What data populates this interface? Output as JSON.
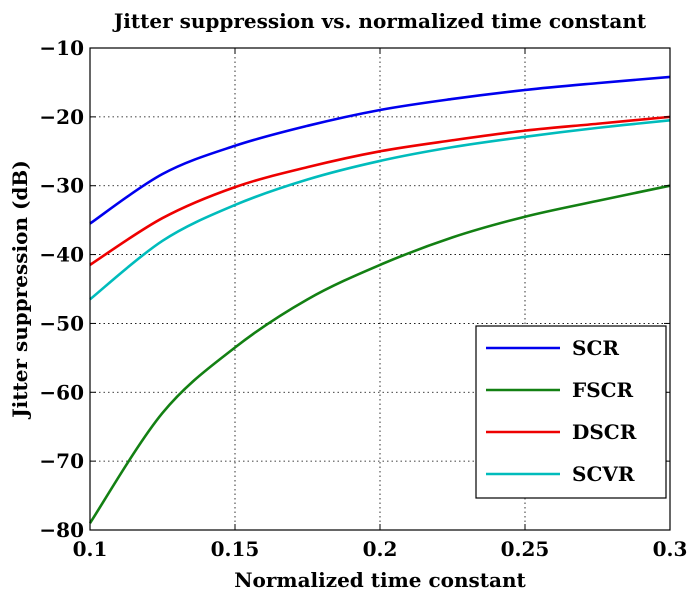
{
  "chart_data": {
    "type": "line",
    "title": "Jitter suppression vs. normalized time constant",
    "xlabel": "Normalized time constant",
    "ylabel": "Jitter suppression (dB)",
    "xlim": [
      0.1,
      0.3
    ],
    "ylim": [
      -80,
      -10
    ],
    "xticks": [
      0.1,
      0.15,
      0.2,
      0.25,
      0.3
    ],
    "xtick_labels": [
      "0.1",
      "0.15",
      "0.2",
      "0.25",
      "0.3"
    ],
    "yticks": [
      -80,
      -70,
      -60,
      -50,
      -40,
      -30,
      -20,
      -10
    ],
    "ytick_labels": [
      "−80",
      "−70",
      "−60",
      "−50",
      "−40",
      "−30",
      "−20",
      "−10"
    ],
    "grid": true,
    "legend_position": "bottom-right",
    "x": [
      0.1,
      0.125,
      0.15,
      0.175,
      0.2,
      0.225,
      0.25,
      0.275,
      0.3
    ],
    "series": [
      {
        "name": "SCR",
        "color": "#0000ee",
        "values": [
          -35.5,
          -28.3,
          -24.2,
          -21.3,
          -19.0,
          -17.4,
          -16.1,
          -15.1,
          -14.2
        ]
      },
      {
        "name": "FSCR",
        "color": "#138013",
        "values": [
          -79.0,
          -63.0,
          -53.5,
          -46.5,
          -41.5,
          -37.5,
          -34.5,
          -32.2,
          -30.0
        ]
      },
      {
        "name": "DSCR",
        "color": "#ee0000",
        "values": [
          -41.5,
          -34.7,
          -30.2,
          -27.3,
          -25.0,
          -23.4,
          -22.0,
          -21.0,
          -20.0
        ]
      },
      {
        "name": "SCVR",
        "color": "#00bcbc",
        "values": [
          -46.5,
          -38.0,
          -32.8,
          -29.1,
          -26.4,
          -24.4,
          -22.9,
          -21.6,
          -20.5
        ]
      }
    ]
  }
}
